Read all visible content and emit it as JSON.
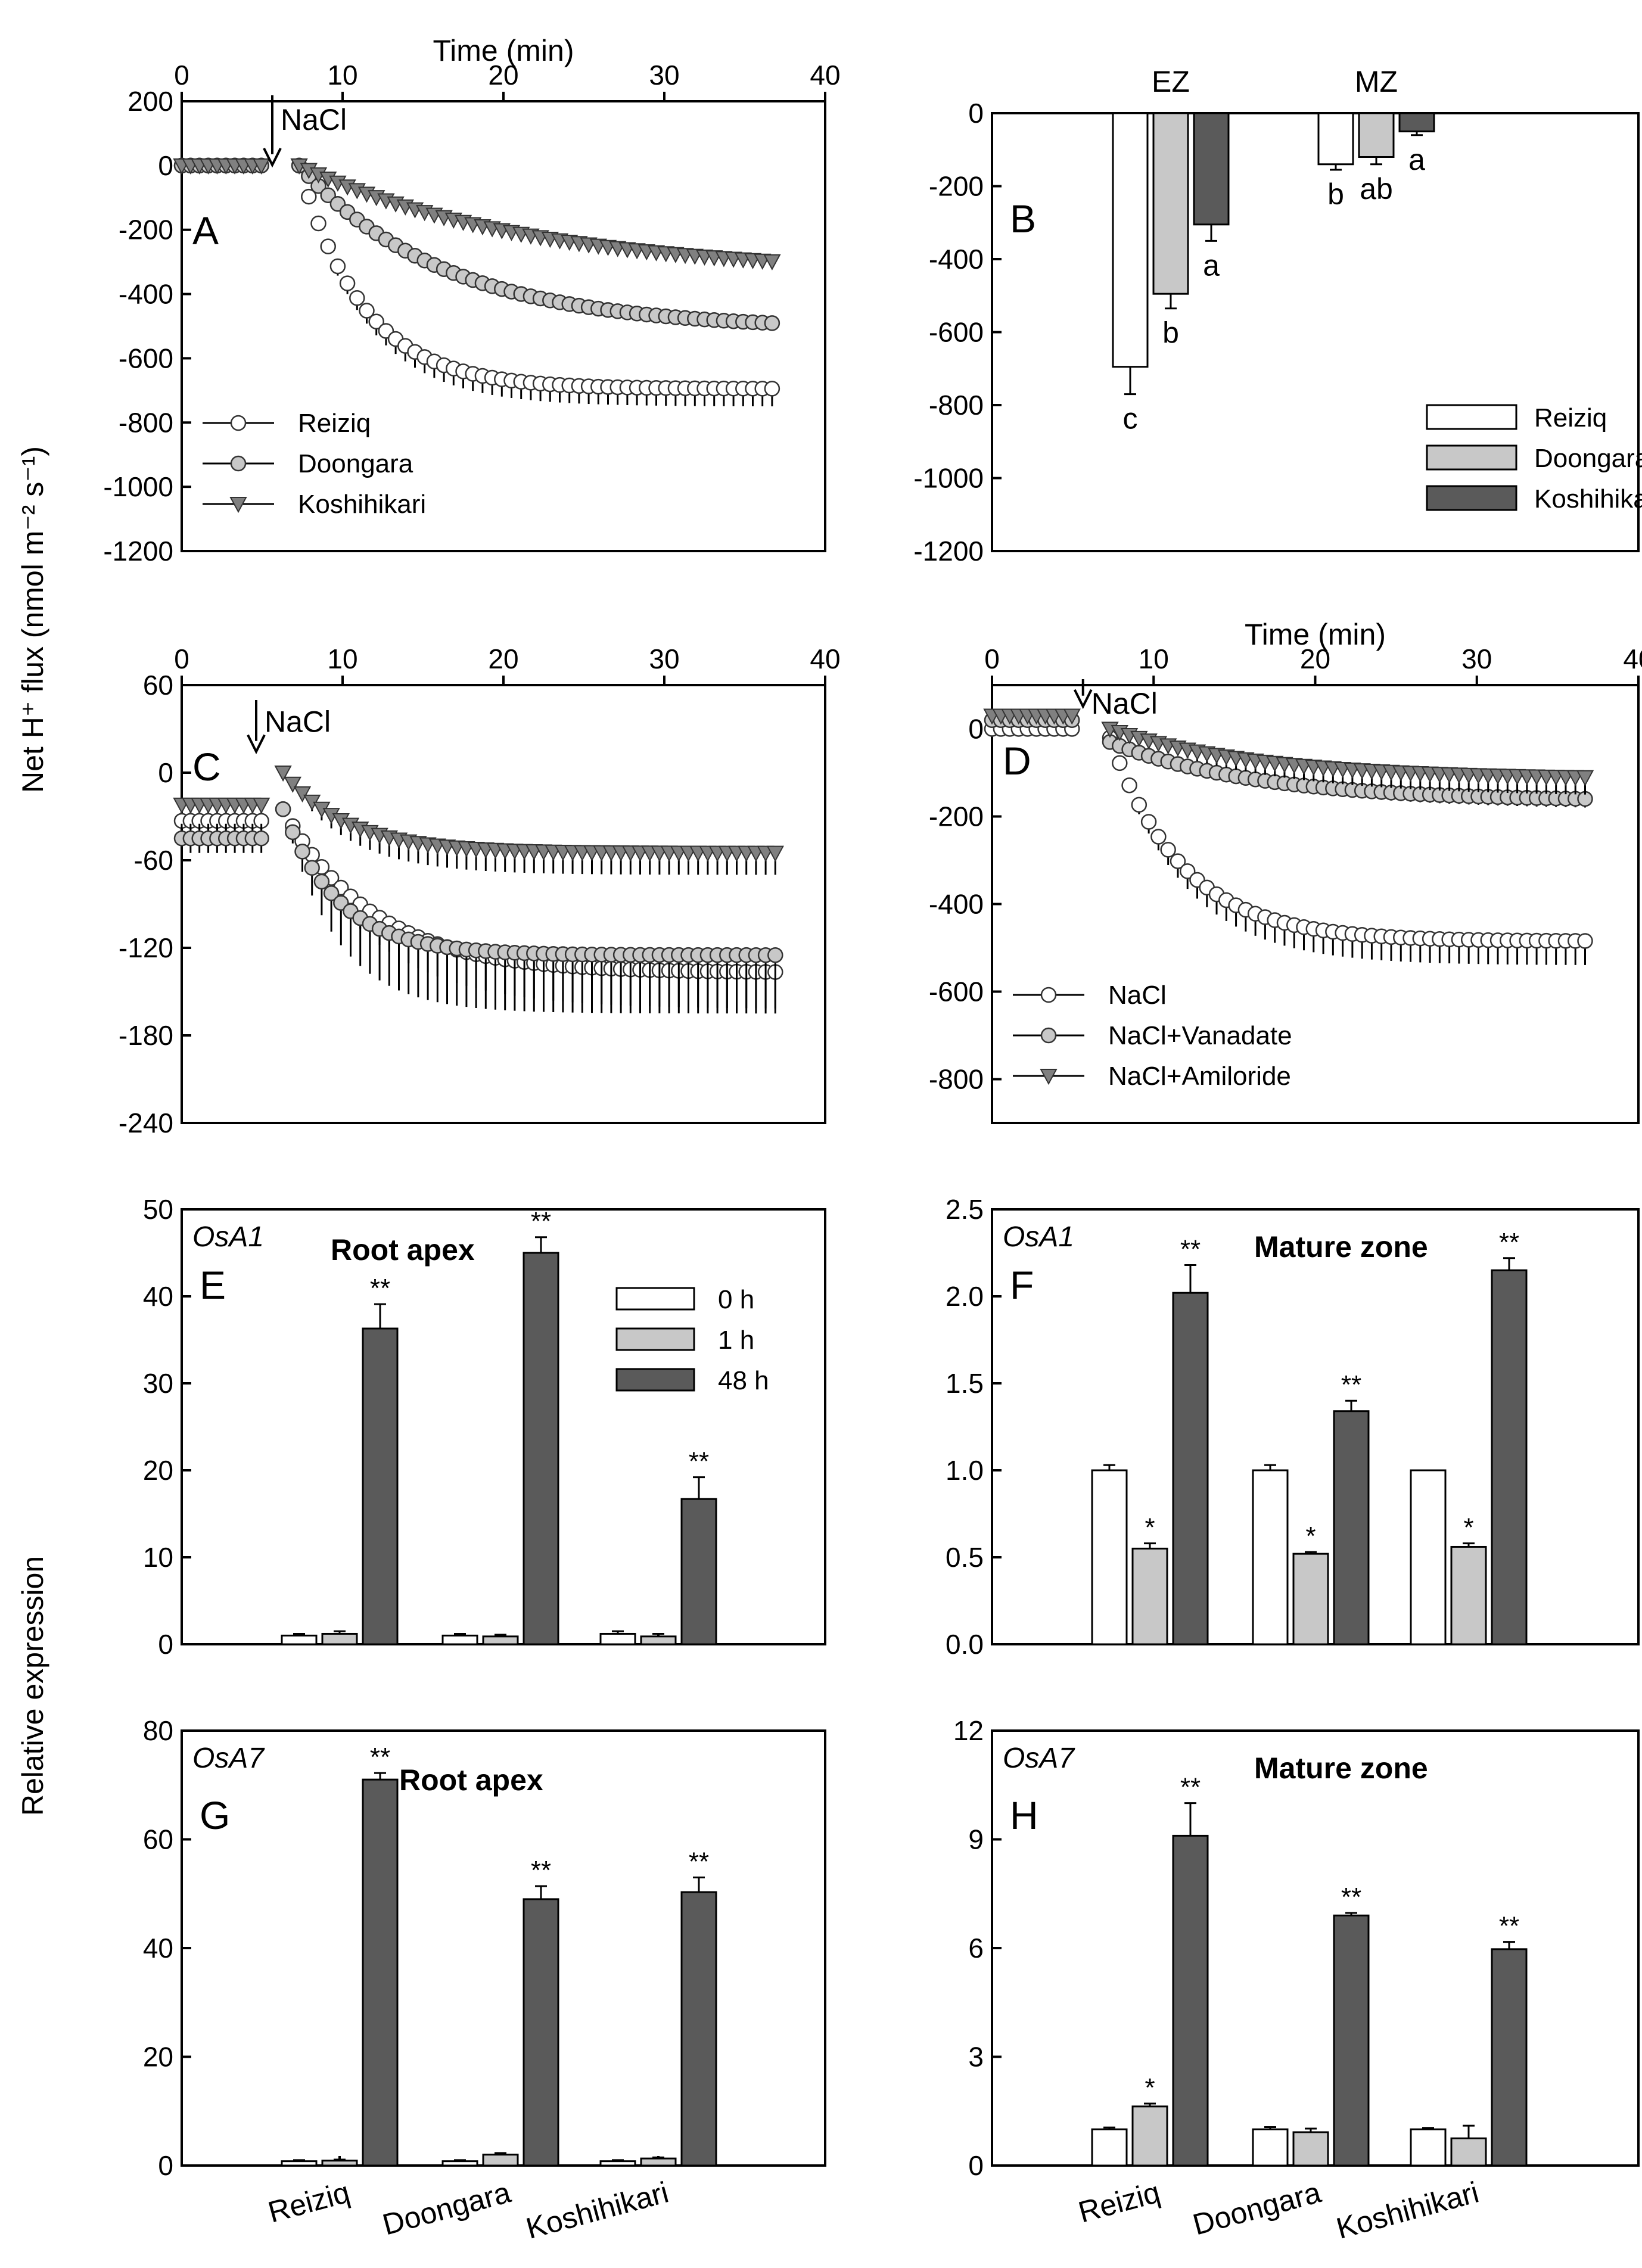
{
  "figure": {
    "y_title_top": "Net H⁺ flux (nmol m⁻² s⁻¹)",
    "y_title_bottom": "Relative expression",
    "stimulus_label": "NaCl"
  },
  "colors": {
    "white": "#ffffff",
    "light_gray": "#c8c8c8",
    "dark_gray": "#5a5a5a",
    "mid_gray": "#808080"
  },
  "chart_data": [
    {
      "id": "A",
      "type": "line",
      "panel_letter": "A",
      "xlabel": "Time (min)",
      "xlabel_position": "top",
      "xlim": [
        0,
        40
      ],
      "xticks": [
        0,
        10,
        20,
        30,
        40
      ],
      "ylim": [
        -1200,
        200
      ],
      "yticks": [
        200,
        0,
        -200,
        -400,
        -600,
        -800,
        -1000,
        -1200
      ],
      "stimulus_time": 6,
      "legend_position": "bottom-left",
      "series": [
        {
          "name": "Reiziq",
          "marker": "circle",
          "fill": "white",
          "pre": 0,
          "time_constant": 4.0,
          "final": -695,
          "error": 55
        },
        {
          "name": "Doongara",
          "marker": "circle",
          "fill": "light_gray",
          "pre": 0,
          "time_constant": 9.0,
          "final": -510,
          "error": 20
        },
        {
          "name": "Koshihikari",
          "marker": "triangle",
          "fill": "mid_gray",
          "pre": 0,
          "time_constant": 14.0,
          "final": -340,
          "error": 20
        }
      ]
    },
    {
      "id": "B",
      "type": "bar",
      "panel_letter": "B",
      "categories": [
        "EZ",
        "MZ"
      ],
      "category_position": "top",
      "ylim": [
        -1200,
        0
      ],
      "yticks": [
        0,
        -200,
        -400,
        -600,
        -800,
        -1000,
        -1200
      ],
      "legend_position": "bottom-right",
      "series": [
        {
          "name": "Reiziq",
          "fill": "white",
          "values": [
            -695,
            -140
          ],
          "errors": [
            75,
            15
          ],
          "letters": [
            "c",
            "b"
          ]
        },
        {
          "name": "Doongara",
          "fill": "light_gray",
          "values": [
            -495,
            -120
          ],
          "errors": [
            40,
            20
          ],
          "letters": [
            "b",
            "ab"
          ]
        },
        {
          "name": "Koshihikari",
          "fill": "dark_gray",
          "values": [
            -305,
            -50
          ],
          "errors": [
            45,
            10
          ],
          "letters": [
            "a",
            "a"
          ]
        }
      ]
    },
    {
      "id": "C",
      "type": "line",
      "panel_letter": "C",
      "xlabel": "",
      "xlim": [
        0,
        40
      ],
      "xticks": [
        0,
        10,
        20,
        30,
        40
      ],
      "ylim": [
        -240,
        60
      ],
      "yticks": [
        60,
        0,
        -60,
        -120,
        -180,
        -240
      ],
      "stimulus_time": 5,
      "series": [
        {
          "name": "Reiziq",
          "marker": "circle",
          "fill": "white",
          "pre": -33,
          "start": -25,
          "time_constant": 5.5,
          "final": -137,
          "error": 25
        },
        {
          "name": "Doongara",
          "marker": "circle",
          "fill": "light_gray",
          "pre": -45,
          "start": -25,
          "time_constant": 3.5,
          "final": -125,
          "error": 40
        },
        {
          "name": "Koshihikari",
          "marker": "triangle",
          "fill": "mid_gray",
          "pre": -22,
          "start": 0,
          "time_constant": 4.0,
          "final": -55,
          "error": 15
        }
      ]
    },
    {
      "id": "D",
      "type": "line",
      "panel_letter": "D",
      "xlabel": "Time (min)",
      "xlabel_position": "top",
      "xlim": [
        0,
        40
      ],
      "xticks": [
        0,
        10,
        20,
        30,
        40
      ],
      "ylim": [
        -900,
        100
      ],
      "yticks": [
        0,
        -200,
        -400,
        -600,
        -800
      ],
      "stimulus_time": 6,
      "legend_position": "bottom-left",
      "series": [
        {
          "name": "NaCl",
          "marker": "circle",
          "fill": "white",
          "pre": 0,
          "start": -20,
          "time_constant": 4.5,
          "final": -485,
          "error": 55
        },
        {
          "name": "NaCl+Vanadate",
          "marker": "circle",
          "fill": "light_gray",
          "pre": 20,
          "start": -30,
          "time_constant": 9.0,
          "final": -165,
          "error": 20
        },
        {
          "name": "NaCl+Amiloride",
          "marker": "triangle",
          "fill": "mid_gray",
          "pre": 30,
          "start": 0,
          "time_constant": 9.0,
          "final": -115,
          "error": 40
        }
      ]
    },
    {
      "id": "E",
      "type": "bar",
      "panel_letter": "E",
      "gene": "OsA1",
      "zone": "Root apex",
      "categories": [
        "Reiziq",
        "Doongara",
        "Koshihikari"
      ],
      "ylim": [
        0,
        50
      ],
      "yticks": [
        0,
        10,
        20,
        30,
        40,
        50
      ],
      "legend_position": "top-right",
      "series": [
        {
          "name": "0 h",
          "fill": "white",
          "values": [
            1.0,
            1.0,
            1.2
          ],
          "errors": [
            0.2,
            0.2,
            0.3
          ],
          "sig": [
            "",
            "",
            ""
          ]
        },
        {
          "name": "1 h",
          "fill": "light_gray",
          "values": [
            1.2,
            0.9,
            0.9
          ],
          "errors": [
            0.3,
            0.2,
            0.3
          ],
          "sig": [
            "",
            "",
            ""
          ]
        },
        {
          "name": "48 h",
          "fill": "dark_gray",
          "values": [
            36.3,
            45.0,
            16.7
          ],
          "errors": [
            2.8,
            1.8,
            2.5
          ],
          "sig": [
            "**",
            "**",
            "**"
          ]
        }
      ]
    },
    {
      "id": "F",
      "type": "bar",
      "panel_letter": "F",
      "gene": "OsA1",
      "zone": "Mature zone",
      "categories": [
        "Reiziq",
        "Doongara",
        "Koshihikari"
      ],
      "ylim": [
        0,
        2.5
      ],
      "yticks": [
        0.0,
        0.5,
        1.0,
        1.5,
        2.0,
        2.5
      ],
      "series": [
        {
          "name": "0 h",
          "fill": "white",
          "values": [
            1.0,
            1.0,
            1.0
          ],
          "errors": [
            0.03,
            0.03,
            0.0
          ],
          "sig": [
            "",
            "",
            ""
          ]
        },
        {
          "name": "1 h",
          "fill": "light_gray",
          "values": [
            0.55,
            0.52,
            0.56
          ],
          "errors": [
            0.03,
            0.01,
            0.02
          ],
          "sig": [
            "*",
            "*",
            "*"
          ]
        },
        {
          "name": "48 h",
          "fill": "dark_gray",
          "values": [
            2.02,
            1.34,
            2.15
          ],
          "errors": [
            0.16,
            0.06,
            0.07
          ],
          "sig": [
            "**",
            "**",
            "**"
          ]
        }
      ]
    },
    {
      "id": "G",
      "type": "bar",
      "panel_letter": "G",
      "gene": "OsA7",
      "zone": "Root apex",
      "categories": [
        "Reiziq",
        "Doongara",
        "Koshihikari"
      ],
      "ylim": [
        0,
        80
      ],
      "yticks": [
        0,
        20,
        40,
        60,
        80
      ],
      "series": [
        {
          "name": "0 h",
          "fill": "white",
          "values": [
            0.8,
            0.8,
            0.8
          ],
          "errors": [
            0.2,
            0.2,
            0.2
          ],
          "sig": [
            "",
            "",
            ""
          ]
        },
        {
          "name": "1 h",
          "fill": "light_gray",
          "values": [
            0.9,
            2.0,
            1.3
          ],
          "errors": [
            0.2,
            0.3,
            0.2
          ],
          "sig": [
            "",
            "",
            ""
          ]
        },
        {
          "name": "48 h",
          "fill": "dark_gray",
          "values": [
            71.0,
            49.0,
            50.3
          ],
          "errors": [
            1.2,
            2.4,
            2.7
          ],
          "sig": [
            "**",
            "**",
            "**"
          ]
        }
      ]
    },
    {
      "id": "H",
      "type": "bar",
      "panel_letter": "H",
      "gene": "OsA7",
      "zone": "Mature zone",
      "categories": [
        "Reiziq",
        "Doongara",
        "Koshihikari"
      ],
      "ylim": [
        0,
        12
      ],
      "yticks": [
        0,
        3,
        6,
        9,
        12
      ],
      "series": [
        {
          "name": "0 h",
          "fill": "white",
          "values": [
            1.0,
            1.0,
            1.0
          ],
          "errors": [
            0.05,
            0.06,
            0.04
          ],
          "sig": [
            "",
            "",
            ""
          ]
        },
        {
          "name": "1 h",
          "fill": "light_gray",
          "values": [
            1.63,
            0.92,
            0.75
          ],
          "errors": [
            0.08,
            0.1,
            0.35
          ],
          "sig": [
            "*",
            "",
            ""
          ]
        },
        {
          "name": "48 h",
          "fill": "dark_gray",
          "values": [
            9.1,
            6.9,
            5.97
          ],
          "errors": [
            0.9,
            0.07,
            0.2
          ],
          "sig": [
            "**",
            "**",
            "**"
          ]
        }
      ]
    }
  ]
}
